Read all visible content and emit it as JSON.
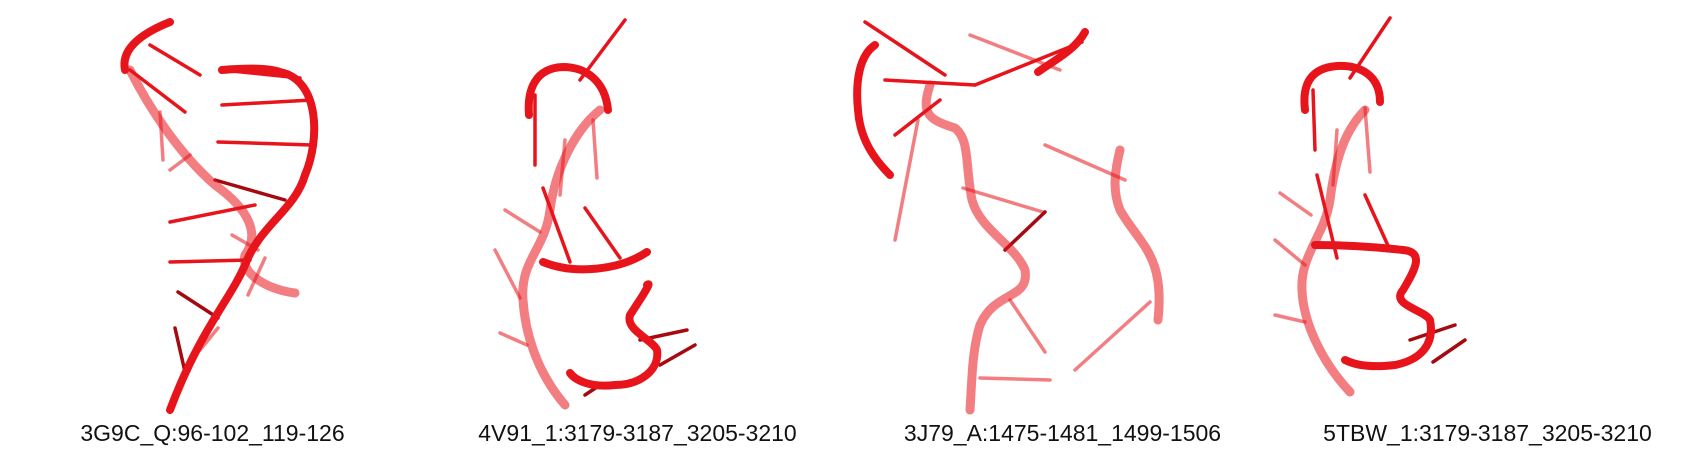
{
  "colors": {
    "ribbon": "#e8141c",
    "ribbon_dark": "#a50a10",
    "ribbon_light": "#f26a6e"
  },
  "panels": [
    {
      "caption": "3G9C_Q:96-102_119-126"
    },
    {
      "caption": "4V91_1:3179-3187_3205-3210"
    },
    {
      "caption": "3J79_A:1475-1481_1499-1506"
    },
    {
      "caption": "5TBW_1:3179-3187_3205-3210"
    }
  ]
}
